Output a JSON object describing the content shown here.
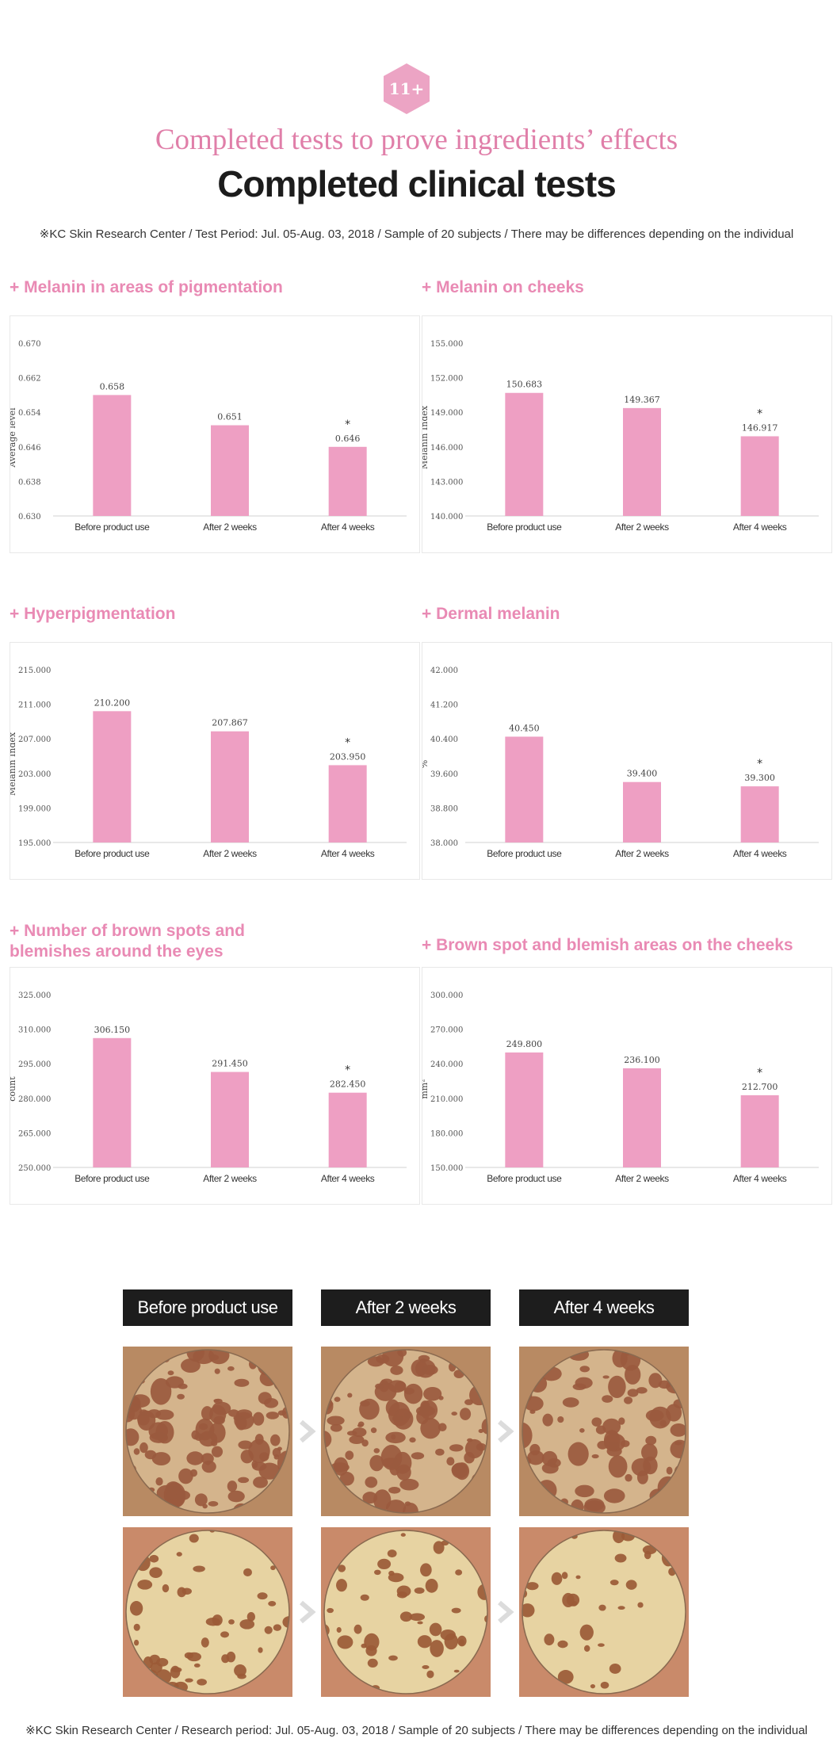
{
  "header": {
    "badge": "11+",
    "subtitle": "Completed tests to prove ingredients’ effects",
    "title": "Completed clinical tests",
    "note": "※KC Skin Research Center / Test Period: Jul. 05-Aug. 03, 2018 / Sample of 20 subjects / There may be differences depending on the individual"
  },
  "footer": {
    "note": "※KC Skin Research Center / Research period: Jul. 05-Aug. 03, 2018 / Sample of 20 subjects / There may be differences depending on the individual"
  },
  "colors": {
    "accent": "#e98ab4",
    "bar": "#ee9fc3",
    "title": "#1c1c1c"
  },
  "headings": [
    "+ Melanin in areas of pigmentation",
    "+ Melanin on cheeks",
    "+ Hyperpigmentation",
    "+ Dermal melanin",
    "+ Number of brown spots and\nblemishes around the eyes",
    "+ Brown spot and blemish areas on the cheeks"
  ],
  "chart_data": [
    {
      "type": "bar",
      "title": "+ Melanin in areas of pigmentation",
      "ylabel": "Average level",
      "categories": [
        "Before product use",
        "After 2 weeks",
        "After 4 weeks"
      ],
      "values": [
        0.658,
        0.651,
        0.646
      ],
      "value_labels": [
        "0.658",
        "0.651",
        "0.646"
      ],
      "ylim": [
        0.63,
        0.67
      ],
      "yticks": [
        "0.630",
        "0.638",
        "0.646",
        "0.654",
        "0.662",
        "0.670"
      ],
      "marker_on_last": "*"
    },
    {
      "type": "bar",
      "title": "+ Melanin on cheeks",
      "ylabel": "Melanin Index",
      "categories": [
        "Before product use",
        "After 2 weeks",
        "After 4 weeks"
      ],
      "values": [
        150.683,
        149.367,
        146.917
      ],
      "value_labels": [
        "150.683",
        "149.367",
        "146.917"
      ],
      "ylim": [
        140.0,
        155.0
      ],
      "yticks": [
        "140.000",
        "143.000",
        "146.000",
        "149.000",
        "152.000",
        "155.000"
      ],
      "marker_on_last": "*"
    },
    {
      "type": "bar",
      "title": "+ Hyperpigmentation",
      "ylabel": "Melanin Index",
      "categories": [
        "Before product use",
        "After 2 weeks",
        "After 4 weeks"
      ],
      "values": [
        210.2,
        207.867,
        203.95
      ],
      "value_labels": [
        "210.200",
        "207.867",
        "203.950"
      ],
      "ylim": [
        195.0,
        215.0
      ],
      "yticks": [
        "195.000",
        "199.000",
        "203.000",
        "207.000",
        "211.000",
        "215.000"
      ],
      "marker_on_last": "*"
    },
    {
      "type": "bar",
      "title": "+ Dermal melanin",
      "ylabel": "%",
      "categories": [
        "Before product use",
        "After 2 weeks",
        "After 4 weeks"
      ],
      "values": [
        40.45,
        39.4,
        39.3
      ],
      "value_labels": [
        "40.450",
        "39.400",
        "39.300"
      ],
      "ylim": [
        38.0,
        42.0
      ],
      "yticks": [
        "38.000",
        "38.800",
        "39.600",
        "40.400",
        "41.200",
        "42.000"
      ],
      "marker_on_last": "*"
    },
    {
      "type": "bar",
      "title": "+ Number of brown spots and blemishes around the eyes",
      "ylabel": "count",
      "categories": [
        "Before product use",
        "After 2 weeks",
        "After 4 weeks"
      ],
      "values": [
        306.15,
        291.45,
        282.45
      ],
      "value_labels": [
        "306.150",
        "291.450",
        "282.450"
      ],
      "ylim": [
        250.0,
        325.0
      ],
      "yticks": [
        "250.000",
        "265.000",
        "280.000",
        "295.000",
        "310.000",
        "325.000"
      ],
      "marker_on_last": "*"
    },
    {
      "type": "bar",
      "title": "+ Brown spot and blemish areas on the cheeks",
      "ylabel": "mm²",
      "categories": [
        "Before product use",
        "After 2 weeks",
        "After 4 weeks"
      ],
      "values": [
        249.8,
        236.1,
        212.7
      ],
      "value_labels": [
        "249.800",
        "236.100",
        "212.700"
      ],
      "ylim": [
        150.0,
        300.0
      ],
      "yticks": [
        "150.000",
        "180.000",
        "210.000",
        "240.000",
        "270.000",
        "300.000"
      ],
      "marker_on_last": "*"
    }
  ],
  "photos": {
    "labels": [
      "Before product use",
      "After 2 weeks",
      "After 4 weeks"
    ],
    "rows": [
      {
        "spot_density": [
          0.46,
          0.43,
          0.36
        ],
        "background": "#d4b48c",
        "spot_color": "#9a5a3e"
      },
      {
        "spot_density": [
          0.26,
          0.22,
          0.15
        ],
        "background": "#e7d3a2",
        "spot_color": "#9b5a36"
      }
    ]
  }
}
